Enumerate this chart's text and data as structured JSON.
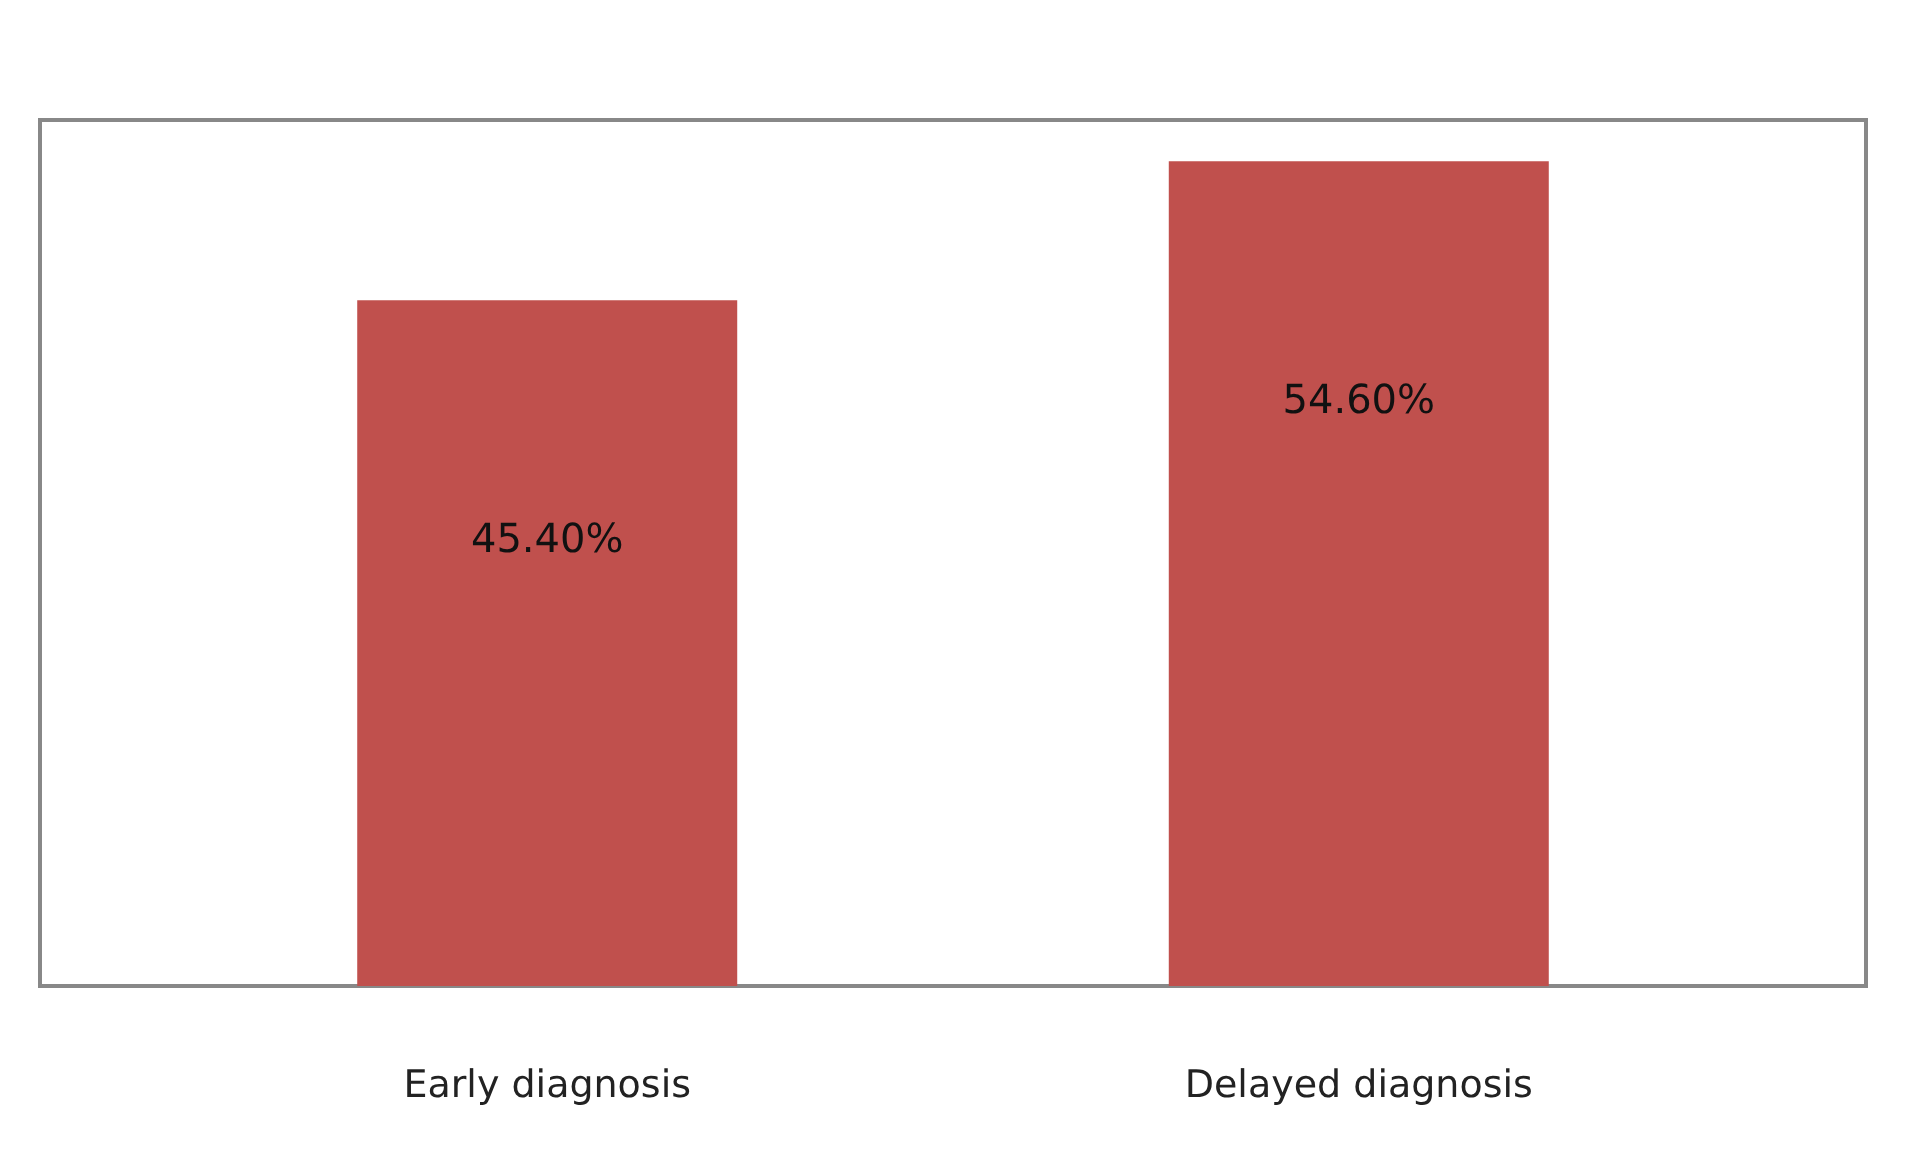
{
  "chart_data": {
    "type": "bar",
    "categories": [
      "Early diagnosis",
      "Delayed diagnosis"
    ],
    "values": [
      45.4,
      54.6
    ],
    "color": "#c0504d",
    "value_labels": [
      "45.40%",
      "54.60%"
    ]
  }
}
